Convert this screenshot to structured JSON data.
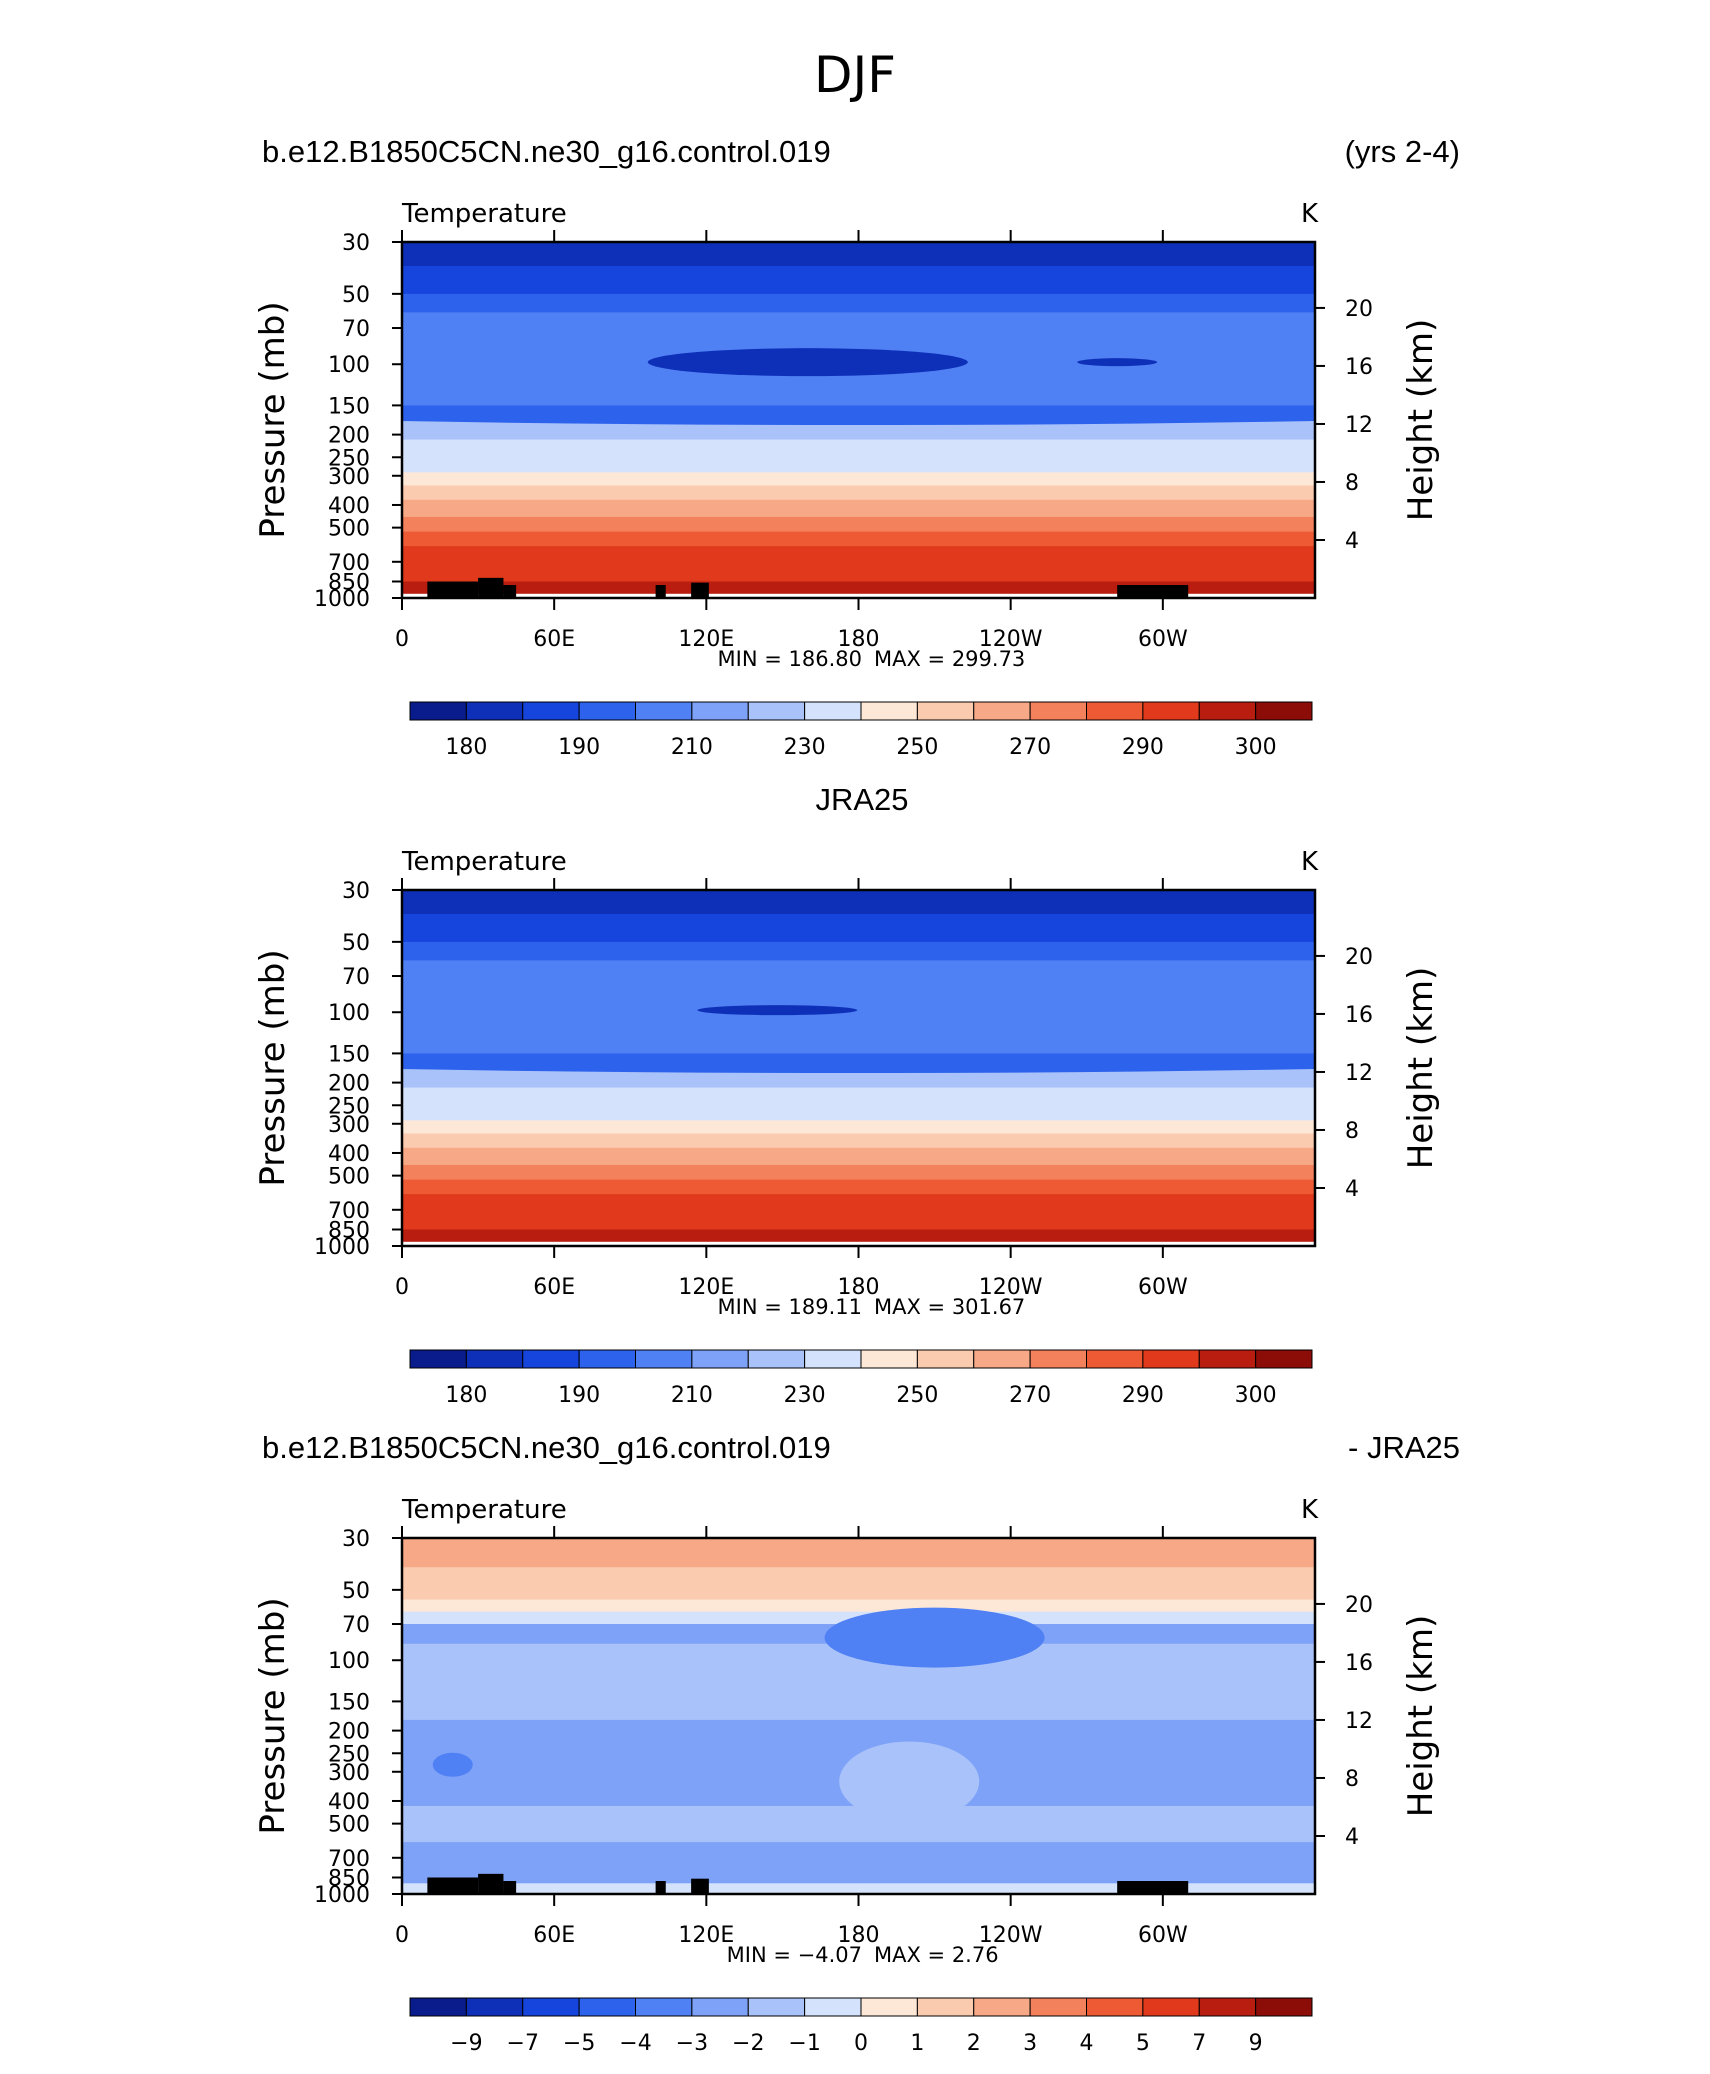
{
  "figure_title": "DJF",
  "chart_data": [
    {
      "type": "heatmap",
      "left_title": "b.e12.B1850C5CN.ne30_g16.control.019",
      "right_title": "(yrs 2-4)",
      "center_title": "",
      "variable": "Temperature",
      "units": "K",
      "ylabel": "Pressure (mb)",
      "ylabel_right": "Height (km)",
      "x_ticks": [
        "0",
        "60E",
        "120E",
        "180",
        "120W",
        "60W"
      ],
      "y_ticks": [
        "30",
        "50",
        "70",
        "100",
        "150",
        "200",
        "250",
        "300",
        "400",
        "500",
        "700",
        "850",
        "1000"
      ],
      "y_ticks_right": [
        "20",
        "16",
        "12",
        "8",
        "4"
      ],
      "min_label": "MIN = 186.80",
      "max_label": "MAX = 299.73",
      "colorbar_labels": [
        "180",
        "190",
        "210",
        "230",
        "250",
        "270",
        "290",
        "300"
      ],
      "colors": [
        "#0a1c8c",
        "#0e30b8",
        "#1545dc",
        "#2c62ec",
        "#4f80f4",
        "#7ea2f7",
        "#a9c2fa",
        "#d4e2fc",
        "#fde8d8",
        "#fbcbb0",
        "#f7a886",
        "#f3815c",
        "#ed5a34",
        "#e0391b",
        "#b81d10",
        "#8c0c08"
      ],
      "band_levels": [
        182,
        192,
        200,
        205,
        212,
        218,
        224,
        228,
        234,
        244,
        256,
        266,
        276,
        284,
        290,
        296
      ],
      "cold_anomaly": true
    },
    {
      "type": "heatmap",
      "left_title": "",
      "right_title": "",
      "center_title": "JRA25",
      "variable": "Temperature",
      "units": "K",
      "ylabel": "Pressure (mb)",
      "ylabel_right": "Height (km)",
      "x_ticks": [
        "0",
        "60E",
        "120E",
        "180",
        "120W",
        "60W"
      ],
      "y_ticks": [
        "30",
        "50",
        "70",
        "100",
        "150",
        "200",
        "250",
        "300",
        "400",
        "500",
        "700",
        "850",
        "1000"
      ],
      "y_ticks_right": [
        "20",
        "16",
        "12",
        "8",
        "4"
      ],
      "min_label": "MIN = 189.11",
      "max_label": "MAX = 301.67",
      "colorbar_labels": [
        "180",
        "190",
        "210",
        "230",
        "250",
        "270",
        "290",
        "300"
      ],
      "colors": [
        "#0a1c8c",
        "#0e30b8",
        "#1545dc",
        "#2c62ec",
        "#4f80f4",
        "#7ea2f7",
        "#a9c2fa",
        "#d4e2fc",
        "#fde8d8",
        "#fbcbb0",
        "#f7a886",
        "#f3815c",
        "#ed5a34",
        "#e0391b",
        "#b81d10",
        "#8c0c08"
      ],
      "band_levels": [
        182,
        192,
        200,
        205,
        212,
        218,
        224,
        228,
        234,
        244,
        256,
        266,
        276,
        284,
        290,
        296
      ],
      "cold_anomaly": true
    },
    {
      "type": "heatmap",
      "left_title": "b.e12.B1850C5CN.ne30_g16.control.019",
      "right_title": "- JRA25",
      "center_title": "",
      "variable": "Temperature",
      "units": "K",
      "ylabel": "Pressure (mb)",
      "ylabel_right": "Height (km)",
      "x_ticks": [
        "0",
        "60E",
        "120E",
        "180",
        "120W",
        "60W"
      ],
      "y_ticks": [
        "30",
        "50",
        "70",
        "100",
        "150",
        "200",
        "250",
        "300",
        "400",
        "500",
        "700",
        "850",
        "1000"
      ],
      "y_ticks_right": [
        "20",
        "16",
        "12",
        "8",
        "4"
      ],
      "min_label": "MIN = −4.07",
      "max_label": "MAX = 2.76",
      "colorbar_labels": [
        "−9",
        "−7",
        "−5",
        "−4",
        "−3",
        "−2",
        "−1",
        "0",
        "1",
        "2",
        "3",
        "4",
        "5",
        "7",
        "9"
      ],
      "colors": [
        "#0a1c8c",
        "#0e30b8",
        "#1545dc",
        "#2c62ec",
        "#4f80f4",
        "#7ea2f7",
        "#a9c2fa",
        "#d4e2fc",
        "#fde8d8",
        "#fbcbb0",
        "#f7a886",
        "#f3815c",
        "#ed5a34",
        "#e0391b",
        "#b81d10",
        "#8c0c08"
      ],
      "diff_bands": [
        {
          "p": 30,
          "level": 2.5
        },
        {
          "p": 40,
          "level": 1.5
        },
        {
          "p": 55,
          "level": 0.5
        },
        {
          "p": 62,
          "level": -0.5
        },
        {
          "p": 70,
          "level": -2.5
        },
        {
          "p": 85,
          "level": -1.5
        },
        {
          "p": 180,
          "level": -2.5
        },
        {
          "p": 420,
          "level": -1.5
        },
        {
          "p": 600,
          "level": -2.5
        },
        {
          "p": 900,
          "level": -0.5
        }
      ]
    }
  ]
}
